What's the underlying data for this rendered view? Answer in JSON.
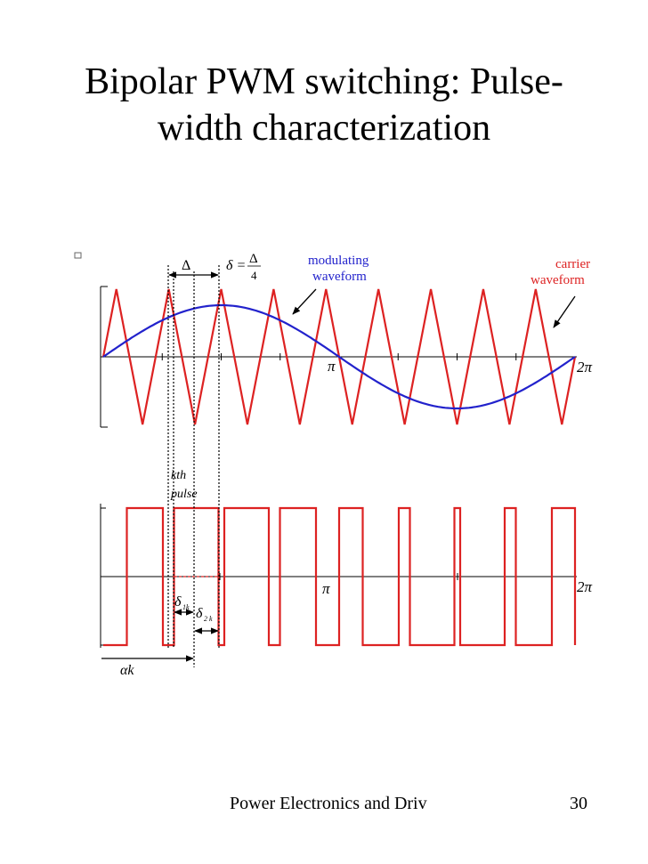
{
  "slide": {
    "title_line1": "Bipolar PWM switching: Pulse-",
    "title_line2": "width characterization",
    "footer_text": "Power Electronics and Driv",
    "page_number": "30"
  },
  "diagram": {
    "delta_symbol": "Δ",
    "delta_eq_lhs": "δ =",
    "delta_eq_num": "Δ",
    "delta_eq_den": "4",
    "modulating_label_1": "modulating",
    "modulating_label_2": "waveform",
    "carrier_label_1": "carrier",
    "carrier_label_2": "waveform",
    "pi_label_top": "π",
    "two_pi_label_top": "2π",
    "kth_label": "kth",
    "pulse_label": "pulse",
    "pi_label_bottom": "π",
    "two_pi_label_bottom": "2π",
    "delta1k_main": "δ",
    "delta1k_sub": "1k",
    "delta2k_main": "δ",
    "delta2k_sub": "2 k",
    "alpha_k_label": "αk",
    "modulating_color": "#2222cc",
    "carrier_color": "#dd2222"
  }
}
